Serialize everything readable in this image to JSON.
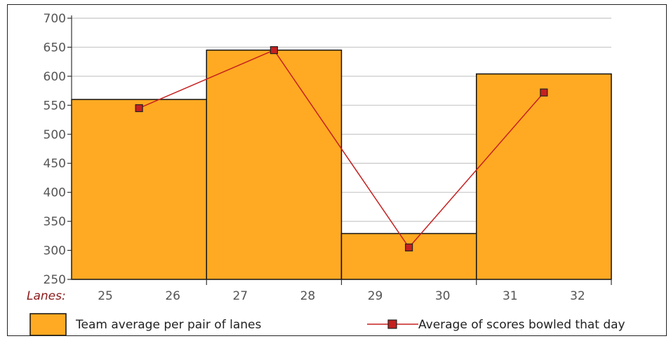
{
  "chart_data": {
    "type": "bar",
    "title": "",
    "xlabel": "Lanes:",
    "ylabel": "",
    "ylim": [
      250,
      700
    ],
    "yticks": [
      250,
      300,
      350,
      400,
      450,
      500,
      550,
      600,
      650,
      700
    ],
    "x_tick_labels": [
      "25",
      "26",
      "27",
      "28",
      "29",
      "30",
      "31",
      "32"
    ],
    "categories": [
      "25-26",
      "27-28",
      "29-30",
      "31-32"
    ],
    "grid": true,
    "legend_position": "bottom",
    "series": [
      {
        "name": "Team average per pair of lanes",
        "kind": "bar",
        "color": "#FFAA22",
        "values": [
          560,
          645,
          329,
          604
        ]
      },
      {
        "name": "Average of scores bowled that day",
        "kind": "line",
        "marker": "square",
        "color": "#C62020",
        "values": [
          545,
          645,
          305,
          572
        ]
      }
    ]
  }
}
